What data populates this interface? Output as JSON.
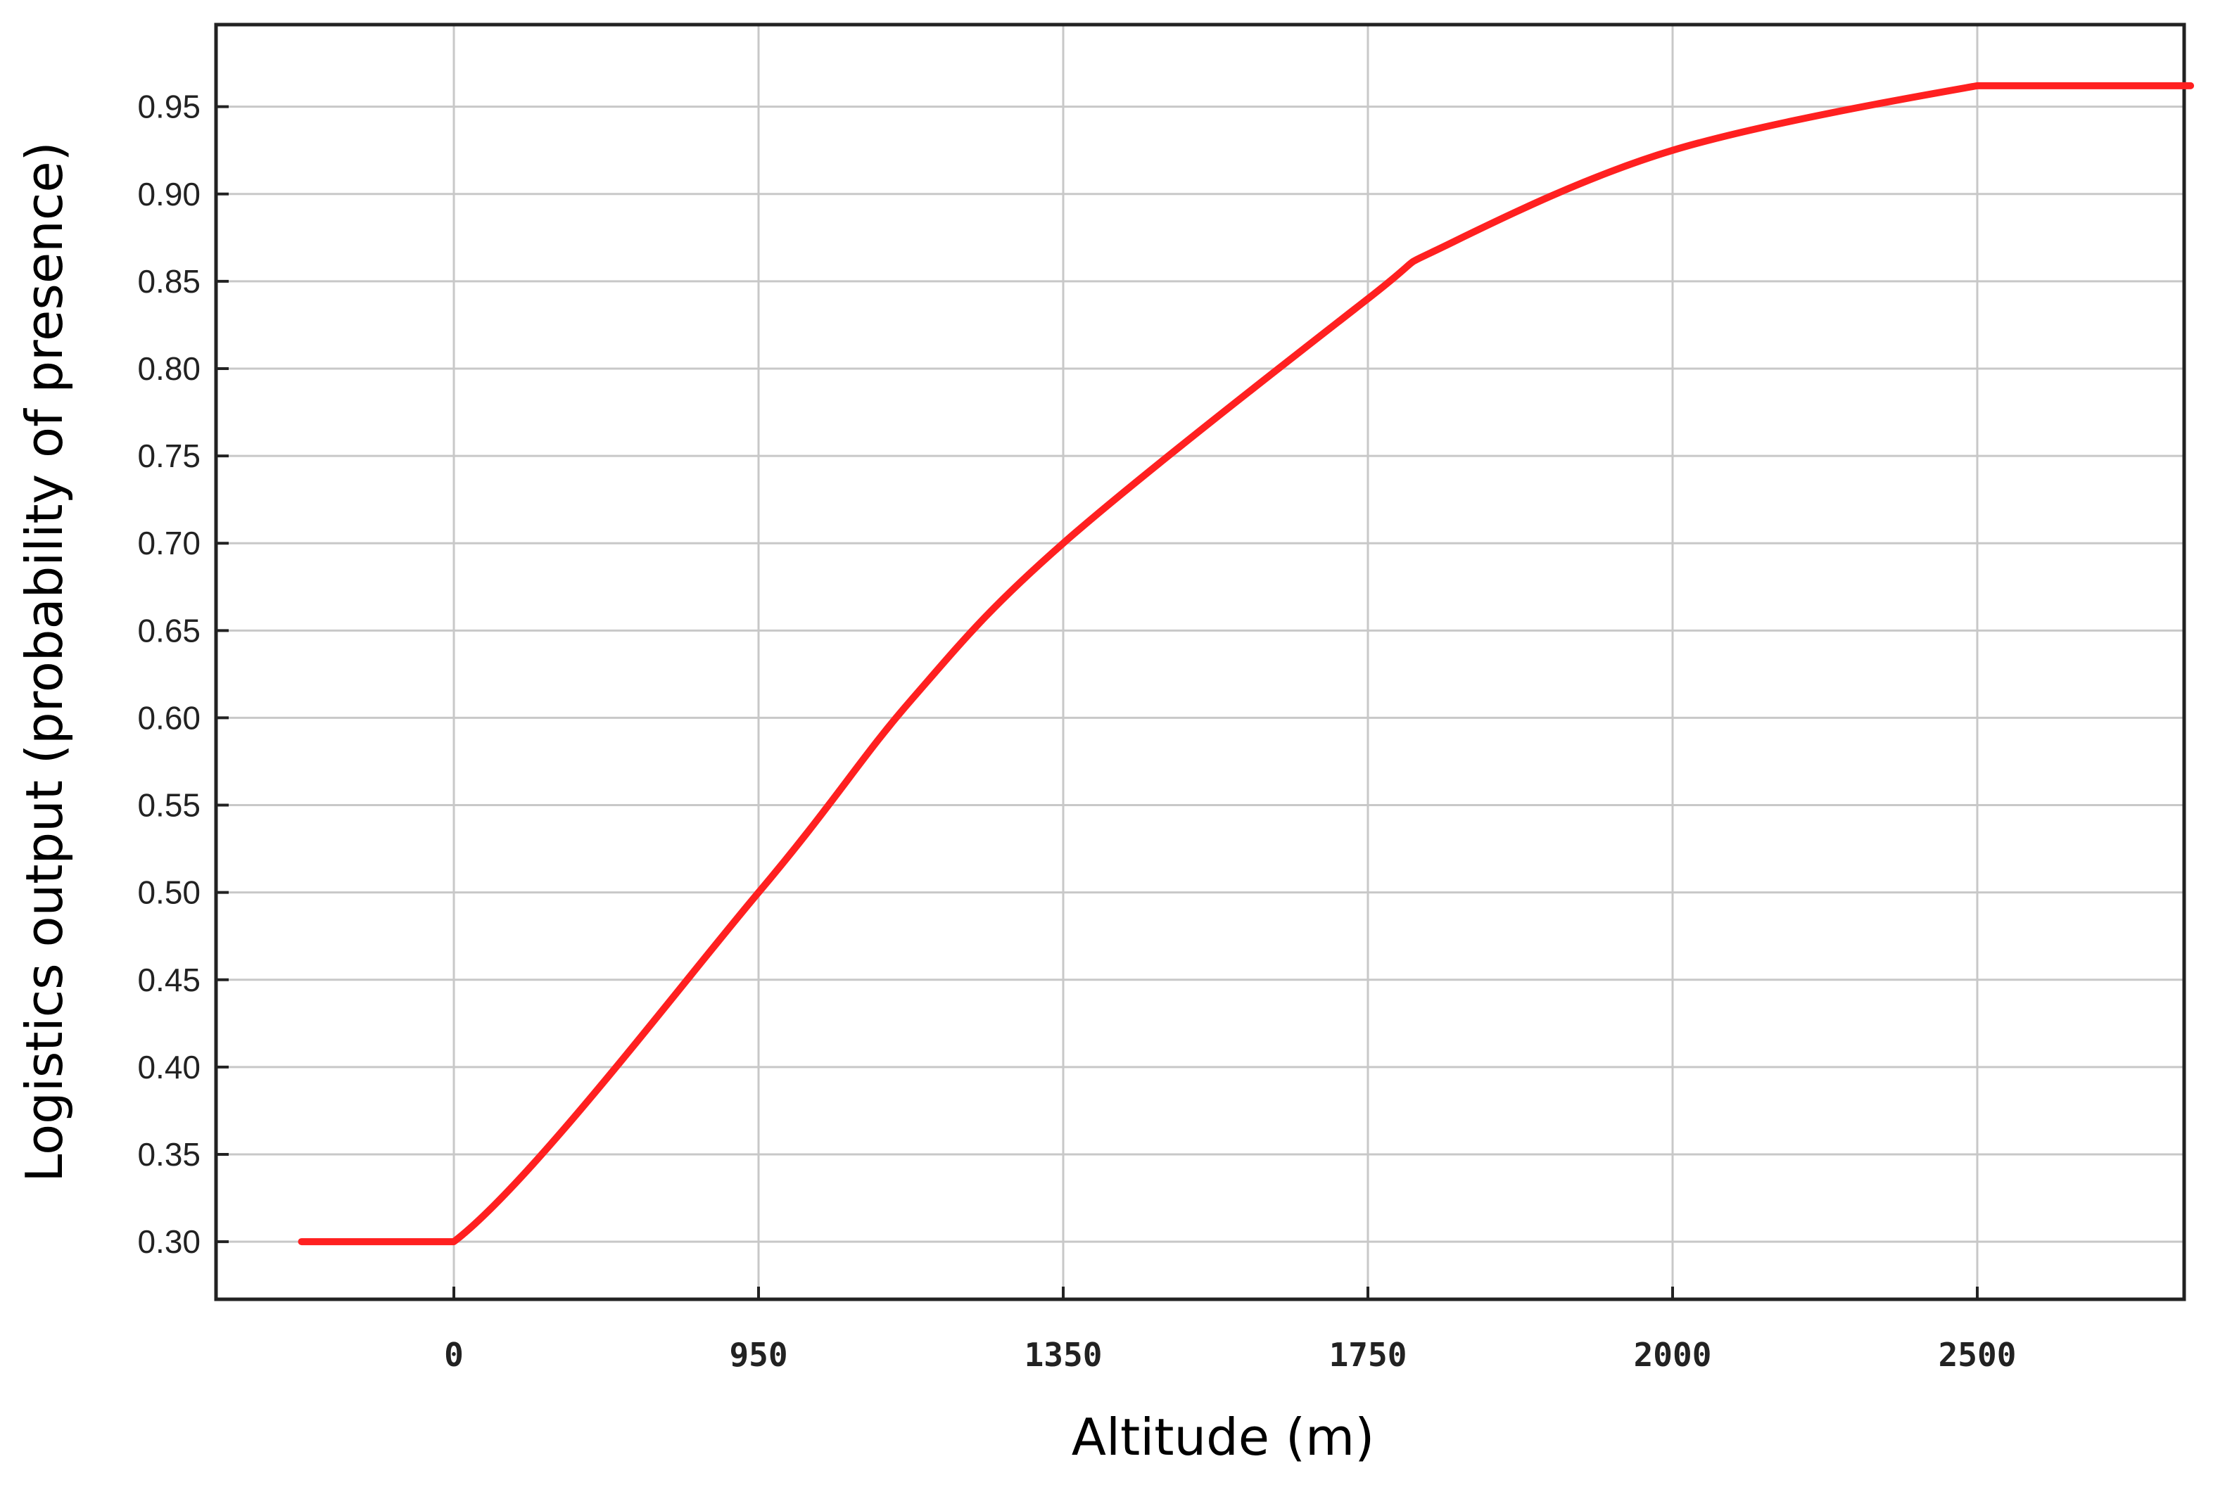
{
  "chart_data": {
    "type": "line",
    "title": "",
    "xlabel": "Altitude (m)",
    "ylabel": "Logistics output (probability of presence)",
    "x_tick_labels": [
      "0",
      "950",
      "1350",
      "1750",
      "2000",
      "2500"
    ],
    "y_tick_labels": [
      "0.30",
      "0.35",
      "0.40",
      "0.45",
      "0.50",
      "0.55",
      "0.60",
      "0.65",
      "0.70",
      "0.75",
      "0.80",
      "0.85",
      "0.90",
      "0.95"
    ],
    "ylim": [
      0.267,
      0.997
    ],
    "grid": true,
    "legend": "none",
    "series": [
      {
        "color": "#ff2020",
        "x_tick_positions": [
          -0.5,
          0,
          1,
          1.5,
          2,
          3,
          3.25,
          4,
          5,
          5.2,
          5.7
        ],
        "values": [
          0.3,
          0.3,
          0.5,
          0.61,
          0.7,
          0.84,
          0.87,
          0.925,
          0.962,
          0.962,
          0.962
        ]
      }
    ]
  }
}
